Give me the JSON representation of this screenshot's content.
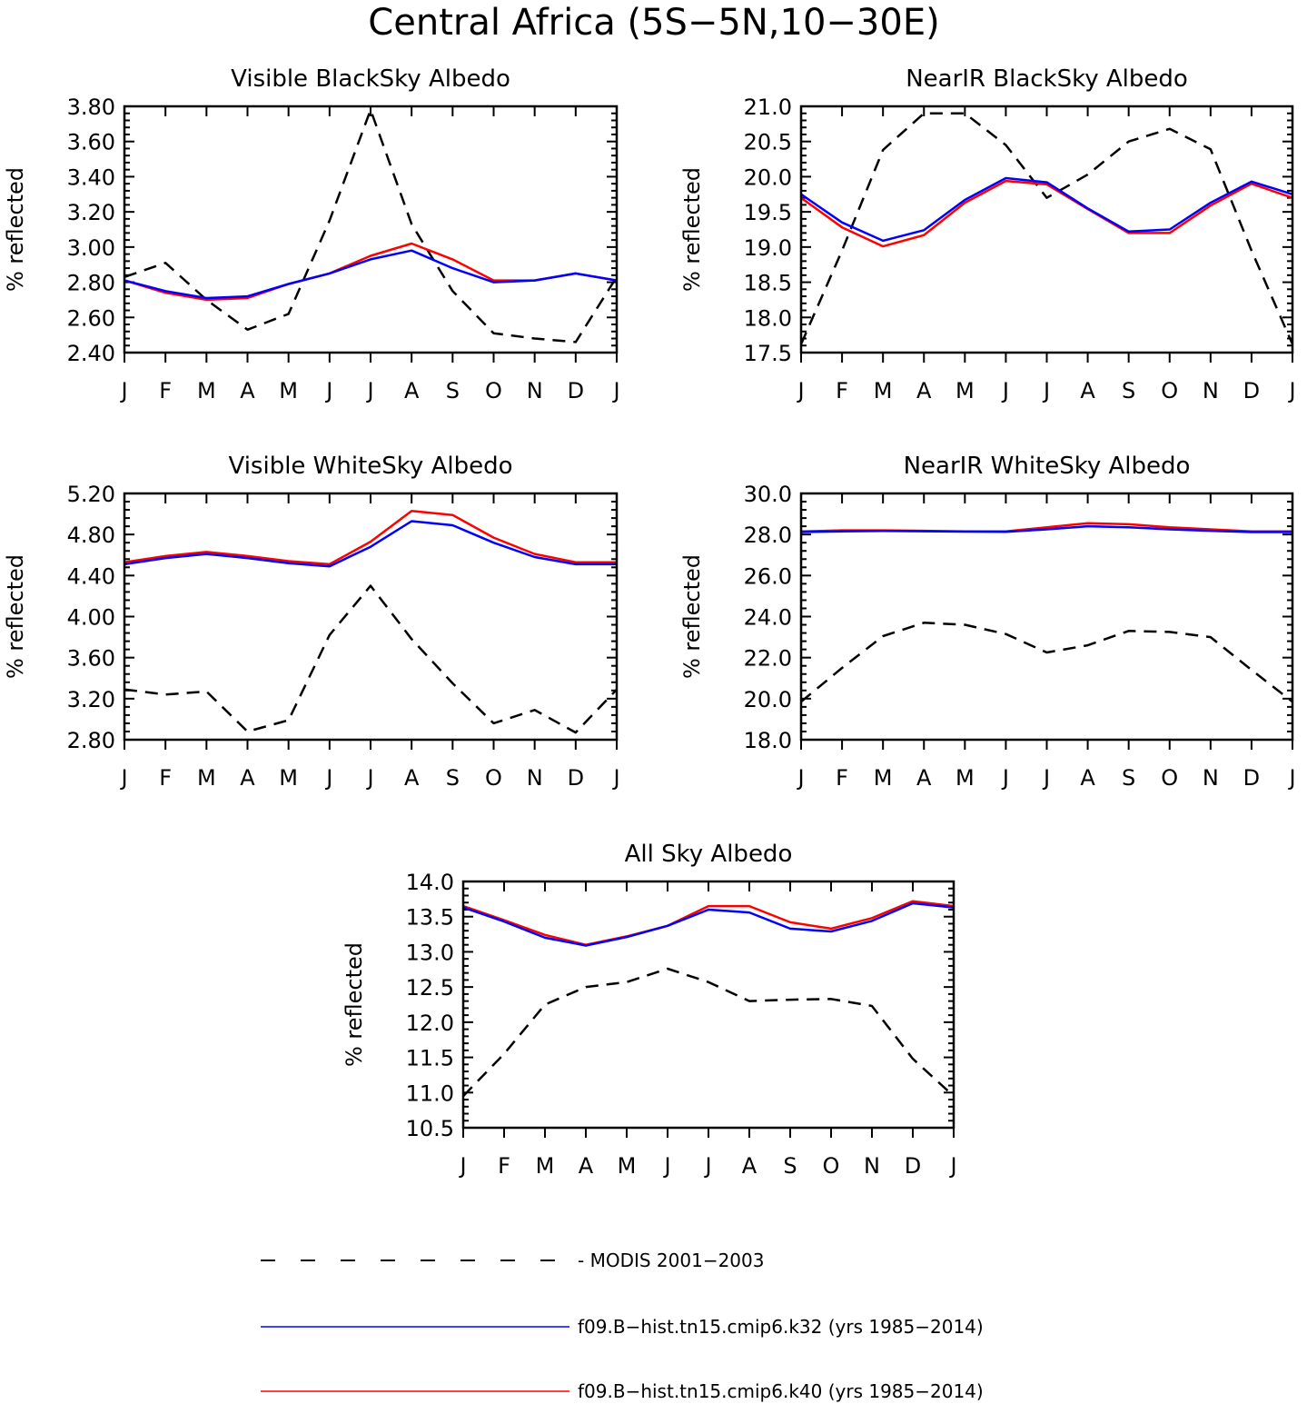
{
  "figure_title": "Central Africa (5S−5N,10−30E)",
  "colors": {
    "modis": "#000000",
    "k32": "#0000ff",
    "k40": "#ff0000"
  },
  "legend": [
    {
      "key": "modis",
      "label": "MODIS 2001−2003",
      "dash": true
    },
    {
      "key": "k32",
      "label": "f09.B−hist.tn15.cmip6.k32 (yrs 1985−2014)",
      "dash": false
    },
    {
      "key": "k40",
      "label": "f09.B−hist.tn15.cmip6.k40 (yrs 1985−2014)",
      "dash": false
    }
  ],
  "chart_data": [
    {
      "type": "line",
      "title": "Visible BlackSky Albedo",
      "ylabel": "% reflected",
      "x": [
        "J",
        "F",
        "M",
        "A",
        "M",
        "J",
        "J",
        "A",
        "S",
        "O",
        "N",
        "D",
        "J"
      ],
      "ylim": [
        2.4,
        3.8
      ],
      "yticks": [
        "2.40",
        "2.60",
        "2.80",
        "3.00",
        "3.20",
        "3.40",
        "3.60",
        "3.80"
      ],
      "series": [
        {
          "key": "modis",
          "values": [
            2.83,
            2.91,
            2.7,
            2.53,
            2.62,
            3.15,
            3.78,
            3.13,
            2.75,
            2.51,
            2.48,
            2.46,
            2.83
          ]
        },
        {
          "key": "k40",
          "values": [
            2.81,
            2.74,
            2.7,
            2.71,
            2.79,
            2.85,
            2.95,
            3.02,
            2.93,
            2.81,
            2.81,
            2.85,
            2.81
          ]
        },
        {
          "key": "k32",
          "values": [
            2.81,
            2.75,
            2.71,
            2.72,
            2.79,
            2.85,
            2.93,
            2.98,
            2.88,
            2.8,
            2.81,
            2.85,
            2.81
          ]
        }
      ]
    },
    {
      "type": "line",
      "title": "NearIR BlackSky Albedo",
      "ylabel": "% reflected",
      "x": [
        "J",
        "F",
        "M",
        "A",
        "M",
        "J",
        "J",
        "A",
        "S",
        "O",
        "N",
        "D",
        "J"
      ],
      "ylim": [
        17.5,
        21.0
      ],
      "yticks": [
        "17.5",
        "18.0",
        "18.5",
        "19.0",
        "19.5",
        "20.0",
        "20.5",
        "21.0"
      ],
      "series": [
        {
          "key": "modis",
          "values": [
            17.62,
            18.95,
            20.38,
            20.9,
            20.9,
            20.45,
            19.7,
            20.03,
            20.5,
            20.68,
            20.39,
            18.95,
            17.62
          ]
        },
        {
          "key": "k40",
          "values": [
            19.7,
            19.28,
            19.01,
            19.17,
            19.63,
            19.94,
            19.89,
            19.54,
            19.2,
            19.2,
            19.59,
            19.9,
            19.7
          ]
        },
        {
          "key": "k32",
          "values": [
            19.75,
            19.35,
            19.09,
            19.24,
            19.67,
            19.98,
            19.92,
            19.55,
            19.22,
            19.25,
            19.63,
            19.93,
            19.75
          ]
        }
      ]
    },
    {
      "type": "line",
      "title": "Visible WhiteSky Albedo",
      "ylabel": "% reflected",
      "x": [
        "J",
        "F",
        "M",
        "A",
        "M",
        "J",
        "J",
        "A",
        "S",
        "O",
        "N",
        "D",
        "J"
      ],
      "ylim": [
        2.8,
        5.2
      ],
      "yticks": [
        "2.80",
        "3.20",
        "3.60",
        "4.00",
        "4.40",
        "4.80",
        "5.20"
      ],
      "series": [
        {
          "key": "modis",
          "values": [
            3.29,
            3.24,
            3.27,
            2.88,
            2.99,
            3.82,
            4.3,
            3.78,
            3.35,
            2.96,
            3.09,
            2.87,
            3.29
          ]
        },
        {
          "key": "k40",
          "values": [
            4.53,
            4.59,
            4.63,
            4.59,
            4.54,
            4.51,
            4.73,
            5.03,
            4.99,
            4.77,
            4.61,
            4.53,
            4.53
          ]
        },
        {
          "key": "k32",
          "values": [
            4.51,
            4.57,
            4.61,
            4.57,
            4.52,
            4.49,
            4.68,
            4.93,
            4.89,
            4.72,
            4.58,
            4.51,
            4.51
          ]
        }
      ]
    },
    {
      "type": "line",
      "title": "NearIR WhiteSky Albedo",
      "ylabel": "% reflected",
      "x": [
        "J",
        "F",
        "M",
        "A",
        "M",
        "J",
        "J",
        "A",
        "S",
        "O",
        "N",
        "D",
        "J"
      ],
      "ylim": [
        18.0,
        30.0
      ],
      "yticks": [
        "18.0",
        "20.0",
        "22.0",
        "24.0",
        "26.0",
        "28.0",
        "30.0"
      ],
      "series": [
        {
          "key": "modis",
          "values": [
            19.85,
            21.5,
            23.05,
            23.7,
            23.6,
            23.15,
            22.25,
            22.6,
            23.3,
            23.25,
            23.0,
            21.4,
            19.85
          ]
        },
        {
          "key": "k40",
          "values": [
            28.15,
            28.2,
            28.2,
            28.18,
            28.15,
            28.15,
            28.35,
            28.55,
            28.5,
            28.35,
            28.25,
            28.15,
            28.15
          ]
        },
        {
          "key": "k32",
          "values": [
            28.12,
            28.15,
            28.17,
            28.16,
            28.14,
            28.13,
            28.25,
            28.4,
            28.35,
            28.25,
            28.18,
            28.12,
            28.12
          ]
        }
      ]
    },
    {
      "type": "line",
      "title": "All Sky Albedo",
      "ylabel": "% reflected",
      "x": [
        "J",
        "F",
        "M",
        "A",
        "M",
        "J",
        "J",
        "A",
        "S",
        "O",
        "N",
        "D",
        "J"
      ],
      "ylim": [
        10.5,
        14.0
      ],
      "yticks": [
        "10.5",
        "11.0",
        "11.5",
        "12.0",
        "12.5",
        "13.0",
        "13.5",
        "14.0"
      ],
      "series": [
        {
          "key": "modis",
          "values": [
            10.95,
            11.55,
            12.25,
            12.5,
            12.57,
            12.76,
            12.57,
            12.3,
            12.32,
            12.33,
            12.23,
            11.48,
            10.95
          ]
        },
        {
          "key": "k40",
          "values": [
            13.65,
            13.45,
            13.24,
            13.1,
            13.22,
            13.37,
            13.65,
            13.65,
            13.42,
            13.33,
            13.48,
            13.72,
            13.65
          ]
        },
        {
          "key": "k32",
          "values": [
            13.63,
            13.43,
            13.2,
            13.09,
            13.21,
            13.37,
            13.6,
            13.56,
            13.33,
            13.29,
            13.44,
            13.69,
            13.63
          ]
        }
      ]
    }
  ]
}
